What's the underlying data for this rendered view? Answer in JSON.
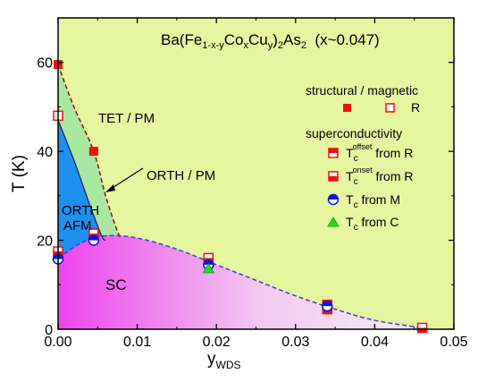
{
  "chart_data": {
    "type": "scatter",
    "title": "Ba(Fe1-x-yCoxCuy)2As2 (x~0.047)",
    "title_parts": {
      "base1": "Ba(Fe",
      "sub1": "1-x-y",
      "base2": "Co",
      "sub2": "x",
      "base3": "Cu",
      "sub3": "y",
      "base4": ")",
      "sub4": "2",
      "base5": "As",
      "sub5": "2",
      "tail": "  (x~0.047)"
    },
    "xlabel": "y",
    "xlabel_sub": "WDS",
    "ylabel": "T (K)",
    "xlim": [
      0,
      0.05
    ],
    "ylim": [
      0,
      70
    ],
    "xticks": [
      0.0,
      0.01,
      0.02,
      0.03,
      0.04,
      0.05
    ],
    "xtick_labels": [
      "0.00",
      "0.01",
      "0.02",
      "0.03",
      "0.04",
      "0.05"
    ],
    "yticks": [
      0,
      20,
      40,
      60
    ],
    "ytick_labels": [
      "0",
      "20",
      "40",
      "60"
    ],
    "colors": {
      "background": "#e6f5a0",
      "afm": "#1e90f0",
      "orth_pm": "#a8e8a0",
      "sc": "#ee44ee",
      "sc_light": "#f4eaf4",
      "red": "#ee1111",
      "blue": "#1010dd",
      "green": "#22dd22",
      "boundary_red": "#8a1010",
      "boundary_blue": "#3a3aee"
    },
    "regions": [
      "TET / PM",
      "ORTH / PM",
      "ORTH",
      "AFM",
      "SC"
    ],
    "region_boundaries": {
      "structural": [
        [
          0.0,
          59.5
        ],
        [
          0.002,
          50
        ],
        [
          0.0045,
          40
        ],
        [
          0.006,
          30
        ],
        [
          0.0075,
          22
        ],
        [
          0.008,
          20.5
        ]
      ],
      "magnetic": [
        [
          0.0,
          47
        ],
        [
          0.002,
          38
        ],
        [
          0.004,
          28
        ],
        [
          0.0055,
          21
        ],
        [
          0.006,
          20
        ]
      ],
      "sc_dome": [
        [
          0.0,
          16
        ],
        [
          0.003,
          19.5
        ],
        [
          0.006,
          21
        ],
        [
          0.01,
          20.5
        ],
        [
          0.015,
          18
        ],
        [
          0.02,
          14.5
        ],
        [
          0.025,
          11
        ],
        [
          0.03,
          7.5
        ],
        [
          0.035,
          4.5
        ],
        [
          0.04,
          2
        ],
        [
          0.046,
          0.3
        ]
      ]
    },
    "legend": {
      "structural_magnetic_heading": "structural / magnetic",
      "structural_magnetic_R_label": "R",
      "superconductivity_heading": "superconductivity",
      "tc_offset_label": {
        "base": "T",
        "sub": "c",
        "sup": "offset",
        "tail": " from R"
      },
      "tc_onset_label": {
        "base": "T",
        "sub": "c",
        "sup": "onset",
        "tail": " from R"
      },
      "tc_M_label": {
        "base": "T",
        "sub": "c",
        "tail": " from M"
      },
      "tc_C_label": {
        "base": "T",
        "sub": "c",
        "tail": " from C"
      },
      "placement": "right"
    },
    "series": [
      {
        "name": "structural",
        "marker": "filled-square",
        "x": [
          0.0,
          0.0045
        ],
        "y": [
          59.5,
          40
        ]
      },
      {
        "name": "magnetic",
        "marker": "open-square",
        "x": [
          0.0
        ],
        "y": [
          48
        ]
      },
      {
        "name": "Tc offset from R",
        "marker": "half-square",
        "x": [
          0.0,
          0.0045,
          0.019,
          0.034
        ],
        "y": [
          16.5,
          21,
          15,
          5.5
        ]
      },
      {
        "name": "Tc onset from R",
        "marker": "half-square-bottom",
        "x": [
          0.0,
          0.0045,
          0.019,
          0.034,
          0.046
        ],
        "y": [
          17.5,
          21.5,
          16,
          4.5,
          0.3
        ]
      },
      {
        "name": "Tc from M",
        "marker": "half-circle",
        "x": [
          0.0,
          0.0045,
          0.019,
          0.034
        ],
        "y": [
          15.8,
          20,
          14.5,
          5.2
        ]
      },
      {
        "name": "Tc from C",
        "marker": "triangle",
        "x": [
          0.019
        ],
        "y": [
          13.5
        ]
      }
    ],
    "grid": false
  }
}
